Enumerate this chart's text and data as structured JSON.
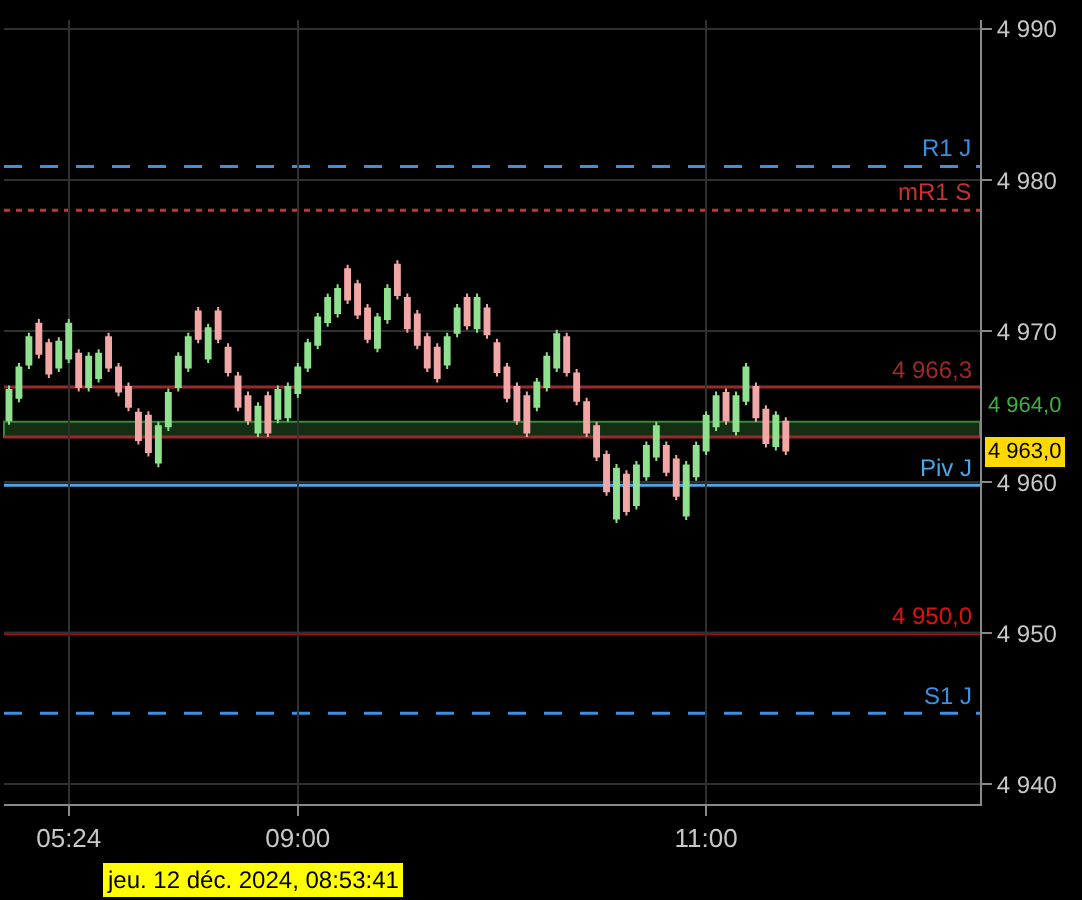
{
  "chart_data": {
    "type": "candlestick",
    "categories": [
      null,
      null,
      null,
      null,
      null,
      null,
      "05:24",
      null,
      null,
      null,
      null,
      null,
      null,
      null,
      null,
      null,
      null,
      null,
      null,
      null,
      null,
      null,
      null,
      null,
      null,
      null,
      null,
      null,
      null,
      "09:00",
      null,
      null,
      null,
      null,
      null,
      null,
      null,
      null,
      null,
      null,
      null,
      null,
      null,
      null,
      null,
      null,
      null,
      null,
      null,
      null,
      null,
      null,
      null,
      null,
      null,
      null,
      null,
      null,
      null,
      null,
      null,
      null,
      null,
      null,
      null,
      null,
      null,
      null,
      null,
      null,
      "11:00",
      null,
      null,
      null,
      null,
      null,
      null,
      null,
      null,
      null,
      null,
      null,
      null,
      null,
      null,
      null,
      null,
      null,
      null,
      null,
      null,
      null,
      null,
      null,
      null,
      null,
      null,
      null
    ],
    "ohlc": [
      [
        4964.1,
        4966.4,
        4963.8,
        4966.1
      ],
      [
        4965.6,
        4967.9,
        4965.3,
        4967.6
      ],
      [
        4967.8,
        4969.9,
        4967.5,
        4969.6
      ],
      [
        4970.5,
        4970.8,
        4968.2,
        4968.5
      ],
      [
        4969.2,
        4969.5,
        4966.9,
        4967.2
      ],
      [
        4967.6,
        4969.6,
        4967.3,
        4969.3
      ],
      [
        4968.2,
        4970.8,
        4967.9,
        4970.5
      ],
      [
        4968.5,
        4968.8,
        4966.0,
        4966.3
      ],
      [
        4966.3,
        4968.6,
        4966.0,
        4968.3
      ],
      [
        4966.9,
        4968.8,
        4966.6,
        4968.5
      ],
      [
        4969.6,
        4969.9,
        4967.3,
        4967.6
      ],
      [
        4967.6,
        4967.9,
        4965.7,
        4966.0
      ],
      [
        4966.3,
        4966.6,
        4964.7,
        4965.0
      ],
      [
        4964.6,
        4964.9,
        4962.5,
        4962.8
      ],
      [
        4964.4,
        4964.7,
        4961.7,
        4962.0
      ],
      [
        4961.3,
        4964.0,
        4961.0,
        4963.7
      ],
      [
        4963.7,
        4966.2,
        4963.4,
        4965.9
      ],
      [
        4966.3,
        4968.6,
        4966.0,
        4968.3
      ],
      [
        4967.6,
        4969.9,
        4967.3,
        4969.6
      ],
      [
        4971.3,
        4971.6,
        4969.2,
        4969.5
      ],
      [
        4968.2,
        4970.5,
        4967.9,
        4970.2
      ],
      [
        4971.3,
        4971.6,
        4969.2,
        4969.5
      ],
      [
        4968.9,
        4969.2,
        4967.0,
        4967.3
      ],
      [
        4967.0,
        4967.3,
        4964.7,
        4965.0
      ],
      [
        4965.7,
        4966.0,
        4963.8,
        4964.1
      ],
      [
        4963.3,
        4965.3,
        4963.0,
        4965.0
      ],
      [
        4965.7,
        4966.0,
        4963.0,
        4963.3
      ],
      [
        4964.2,
        4966.4,
        4963.9,
        4966.1
      ],
      [
        4964.3,
        4966.6,
        4964.0,
        4966.3
      ],
      [
        4965.9,
        4967.9,
        4965.6,
        4967.6
      ],
      [
        4967.6,
        4969.5,
        4967.3,
        4969.2
      ],
      [
        4969.1,
        4971.2,
        4968.8,
        4970.9
      ],
      [
        4970.6,
        4972.5,
        4970.3,
        4972.2
      ],
      [
        4971.2,
        4973.1,
        4970.9,
        4972.8
      ],
      [
        4974.1,
        4974.4,
        4971.8,
        4972.1
      ],
      [
        4973.1,
        4973.4,
        4970.8,
        4971.1
      ],
      [
        4971.5,
        4971.8,
        4969.2,
        4969.5
      ],
      [
        4968.9,
        4971.2,
        4968.6,
        4970.9
      ],
      [
        4970.8,
        4973.1,
        4970.5,
        4972.8
      ],
      [
        4974.4,
        4974.7,
        4972.1,
        4972.4
      ],
      [
        4972.2,
        4972.5,
        4969.9,
        4970.2
      ],
      [
        4971.1,
        4971.4,
        4968.8,
        4969.1
      ],
      [
        4969.6,
        4969.9,
        4967.3,
        4967.6
      ],
      [
        4968.9,
        4969.2,
        4966.6,
        4966.9
      ],
      [
        4967.8,
        4969.9,
        4967.5,
        4969.6
      ],
      [
        4969.9,
        4971.8,
        4969.6,
        4971.5
      ],
      [
        4972.2,
        4972.5,
        4970.1,
        4970.4
      ],
      [
        4970.2,
        4972.5,
        4969.9,
        4972.2
      ],
      [
        4971.5,
        4971.8,
        4969.5,
        4969.8
      ],
      [
        4969.2,
        4969.5,
        4967.0,
        4967.3
      ],
      [
        4967.6,
        4967.9,
        4965.3,
        4965.6
      ],
      [
        4966.3,
        4966.6,
        4963.8,
        4964.1
      ],
      [
        4965.7,
        4966.0,
        4963.0,
        4963.3
      ],
      [
        4965.0,
        4966.9,
        4964.7,
        4966.6
      ],
      [
        4966.3,
        4968.6,
        4966.0,
        4968.3
      ],
      [
        4967.6,
        4970.1,
        4967.3,
        4969.8
      ],
      [
        4969.6,
        4969.9,
        4967.0,
        4967.3
      ],
      [
        4967.2,
        4967.5,
        4965.1,
        4965.4
      ],
      [
        4965.3,
        4965.6,
        4963.0,
        4963.3
      ],
      [
        4963.7,
        4964.0,
        4961.4,
        4961.7
      ],
      [
        4961.8,
        4962.1,
        4959.1,
        4959.4
      ],
      [
        4957.6,
        4961.2,
        4957.3,
        4960.9
      ],
      [
        4960.5,
        4960.8,
        4957.8,
        4958.1
      ],
      [
        4958.5,
        4961.4,
        4958.2,
        4961.1
      ],
      [
        4960.4,
        4962.7,
        4960.1,
        4962.4
      ],
      [
        4961.7,
        4964.0,
        4961.4,
        4963.7
      ],
      [
        4962.4,
        4962.7,
        4960.4,
        4960.7
      ],
      [
        4961.5,
        4961.8,
        4958.8,
        4959.1
      ],
      [
        4957.8,
        4961.4,
        4957.5,
        4961.1
      ],
      [
        4960.4,
        4962.7,
        4960.1,
        4962.4
      ],
      [
        4962.1,
        4964.7,
        4961.8,
        4964.4
      ],
      [
        4963.7,
        4966.0,
        4963.4,
        4965.7
      ],
      [
        4965.9,
        4966.2,
        4963.8,
        4964.1
      ],
      [
        4963.4,
        4966.0,
        4963.1,
        4965.7
      ],
      [
        4965.4,
        4967.9,
        4965.1,
        4967.6
      ],
      [
        4966.3,
        4966.6,
        4964.0,
        4964.3
      ],
      [
        4964.8,
        4965.1,
        4962.3,
        4962.6
      ],
      [
        4962.4,
        4964.7,
        4962.1,
        4964.4
      ],
      [
        4964.0,
        4964.3,
        4961.8,
        4962.1
      ],
      null,
      null,
      null,
      null,
      null,
      null,
      null,
      null,
      null,
      null,
      null,
      null,
      null,
      null,
      null,
      null,
      null,
      null,
      null
    ],
    "colors": [
      "#8fe08f",
      "#8fe08f",
      "#8fe08f",
      "#f2a7a7",
      "#f2a7a7",
      "#8fe08f",
      "#8fe08f",
      "#f2a7a7",
      "#8fe08f",
      "#8fe08f",
      "#f2a7a7",
      "#f2a7a7",
      "#f2a7a7",
      "#f2a7a7",
      "#f2a7a7",
      "#8fe08f",
      "#8fe08f",
      "#8fe08f",
      "#8fe08f",
      "#f2a7a7",
      "#8fe08f",
      "#f2a7a7",
      "#f2a7a7",
      "#f2a7a7",
      "#f2a7a7",
      "#8fe08f",
      "#f2a7a7",
      "#8fe08f",
      "#8fe08f",
      "#8fe08f",
      "#8fe08f",
      "#8fe08f",
      "#8fe08f",
      "#8fe08f",
      "#f2a7a7",
      "#f2a7a7",
      "#f2a7a7",
      "#8fe08f",
      "#8fe08f",
      "#f2a7a7",
      "#f2a7a7",
      "#f2a7a7",
      "#f2a7a7",
      "#f2a7a7",
      "#8fe08f",
      "#8fe08f",
      "#f2a7a7",
      "#8fe08f",
      "#f2a7a7",
      "#f2a7a7",
      "#f2a7a7",
      "#f2a7a7",
      "#f2a7a7",
      "#8fe08f",
      "#8fe08f",
      "#8fe08f",
      "#f2a7a7",
      "#f2a7a7",
      "#f2a7a7",
      "#f2a7a7",
      "#f2a7a7",
      "#8fe08f",
      "#f2a7a7",
      "#8fe08f",
      "#8fe08f",
      "#8fe08f",
      "#f2a7a7",
      "#f2a7a7",
      "#8fe08f",
      "#8fe08f",
      "#8fe08f",
      "#8fe08f",
      "#f2a7a7",
      "#8fe08f",
      "#8fe08f",
      "#f2a7a7",
      "#f2a7a7",
      "#8fe08f",
      "#f2a7a7",
      null,
      null,
      null,
      null,
      null,
      null,
      null,
      null,
      null,
      null,
      null,
      null,
      null,
      null,
      null,
      null,
      null,
      null,
      null
    ],
    "ylim": [
      4938.7,
      4990.6
    ],
    "yticks": [
      {
        "value": 4940,
        "label": "4 940"
      },
      {
        "value": 4950,
        "label": "4 950"
      },
      {
        "value": 4960,
        "label": "4 960"
      },
      {
        "value": 4970,
        "label": "4 970"
      },
      {
        "value": 4980,
        "label": "4 980"
      },
      {
        "value": 4990,
        "label": "4 990"
      }
    ],
    "grid": true,
    "ref_lines": [
      {
        "axis": "y",
        "value": 4980.9,
        "label": "R1 J",
        "color": "#3d8fe0",
        "line_style": "dashed"
      },
      {
        "axis": "y",
        "value": 4978.0,
        "label": "mR1 S",
        "color": "#c83232",
        "line_style": "dotted"
      },
      {
        "axis": "y",
        "value": 4966.3,
        "label": "4 966,3",
        "color": "#9a2a2a",
        "line_style": "solid"
      },
      {
        "axis": "y",
        "value": 4963.0,
        "label": "4 963,0",
        "color": "#9a2a2a",
        "line_style": "solid"
      },
      {
        "axis": "y",
        "value": 4959.8,
        "label": "Piv J",
        "color": "#4aa8e8",
        "line_style": "solid"
      },
      {
        "axis": "y",
        "value": 4950.0,
        "label": "4 950,0",
        "color": "#e01010",
        "line_style": "solid"
      },
      {
        "axis": "y",
        "value": 4944.7,
        "label": "S1 J",
        "color": "#3d8fe0",
        "line_style": "dashed"
      }
    ],
    "bands": [
      {
        "axis": "y",
        "from": 4963.0,
        "to": 4964.0,
        "label": "4 964,0",
        "color": "#3cb043"
      }
    ],
    "annotations": [
      "jeu. 12 déc. 2024, 08:53:41"
    ]
  }
}
